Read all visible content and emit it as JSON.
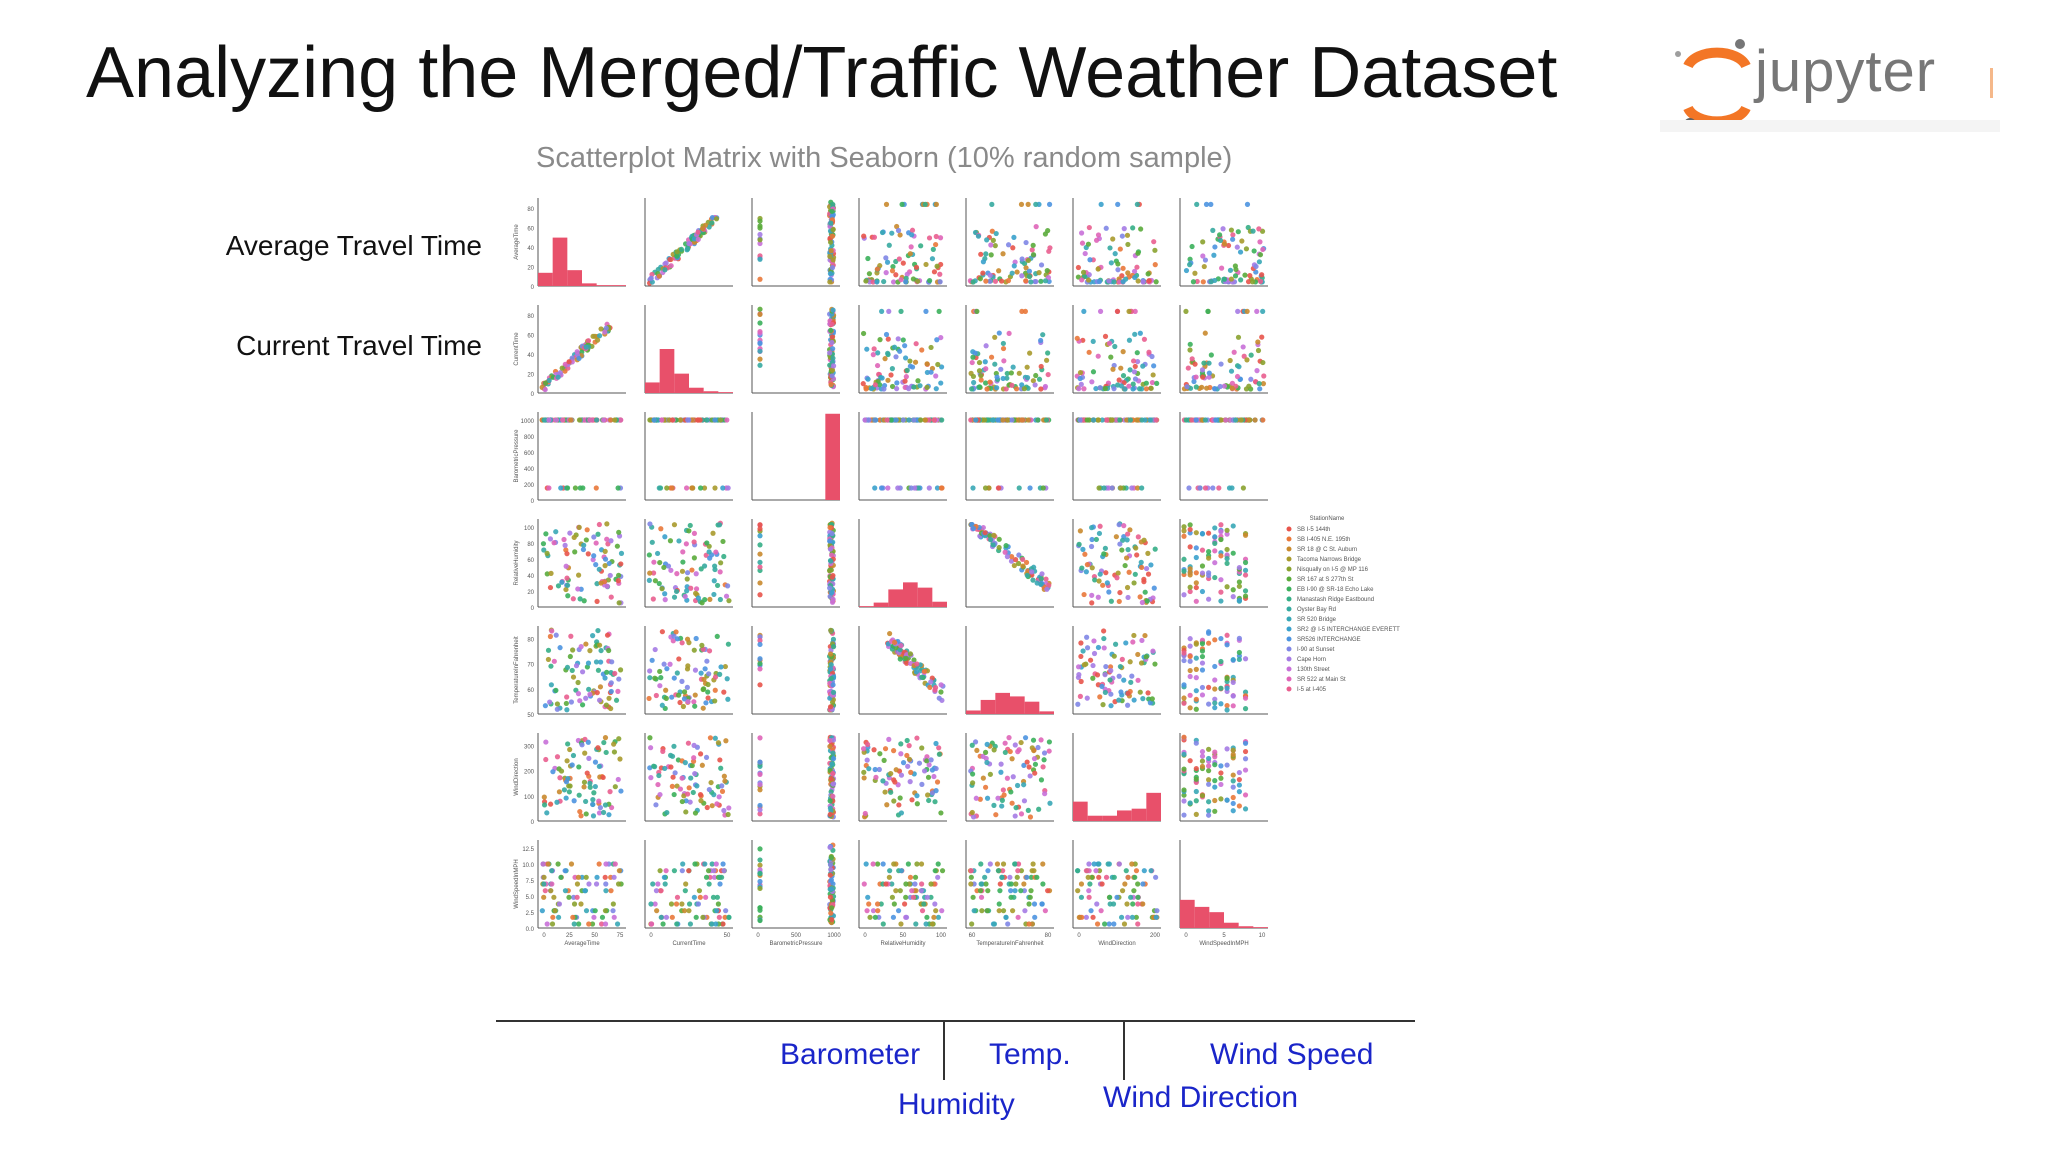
{
  "slide": {
    "title": "Analyzing the Merged/Traffic Weather Dataset",
    "logo_text": "jupyter"
  },
  "chart_data": {
    "type": "scatter",
    "title": "Scatterplot Matrix with Seaborn (10% random sample)",
    "variables": [
      {
        "name": "AverageTime",
        "ticks": [
          "0",
          "20",
          "40",
          "60",
          "80"
        ],
        "xticks": [
          "0",
          "25",
          "50",
          "75"
        ]
      },
      {
        "name": "CurrentTime",
        "ticks": [
          "0",
          "20",
          "40",
          "60",
          "80"
        ],
        "xticks": [
          "0",
          "50"
        ]
      },
      {
        "name": "BarometricPressure",
        "ticks": [
          "0",
          "200",
          "400",
          "600",
          "800",
          "1000"
        ],
        "xticks": [
          "0",
          "500",
          "1000"
        ]
      },
      {
        "name": "RelativeHumidity",
        "ticks": [
          "0",
          "20",
          "40",
          "60",
          "80",
          "100"
        ],
        "xticks": [
          "0",
          "50",
          "100"
        ]
      },
      {
        "name": "TemperatureInFahrenheit",
        "ticks": [
          "50",
          "60",
          "70",
          "80"
        ],
        "xticks": [
          "60",
          "80"
        ]
      },
      {
        "name": "WindDirection",
        "ticks": [
          "0",
          "100",
          "200",
          "300"
        ],
        "xticks": [
          "0",
          "200"
        ]
      },
      {
        "name": "WindSpeedInMPH",
        "ticks": [
          "0.0",
          "2.5",
          "5.0",
          "7.5",
          "10.0",
          "12.5"
        ],
        "xticks": [
          "0",
          "5",
          "10"
        ]
      }
    ],
    "legend": {
      "title": "StationName",
      "placement": "right",
      "entries": [
        {
          "name": "SB I-5 144th",
          "color": "#e8544b"
        },
        {
          "name": "SB I-405 N.E. 195th",
          "color": "#e9783a"
        },
        {
          "name": "SR 18 @ C St. Auburn",
          "color": "#c98a2e"
        },
        {
          "name": "Tacoma Narrows Bridge",
          "color": "#a89a2c"
        },
        {
          "name": "Nisqually on I-5 @ MP 116",
          "color": "#8aa22f"
        },
        {
          "name": "SR 167 at S 277th St",
          "color": "#5aab3b"
        },
        {
          "name": "EB I-90 @ SR-18 Echo Lake",
          "color": "#3bb05b"
        },
        {
          "name": "Manastash Ridge Eastbound",
          "color": "#35ae86"
        },
        {
          "name": "Oyster Bay Rd",
          "color": "#36aaa0"
        },
        {
          "name": "SR 520 Bridge",
          "color": "#38a7b6"
        },
        {
          "name": "SR2 @ I-5 INTERCHANGE EVERETT",
          "color": "#3aa1cc"
        },
        {
          "name": "SR526 INTERCHANGE",
          "color": "#4c94e0"
        },
        {
          "name": "I-90 at Sunset",
          "color": "#7f86e6"
        },
        {
          "name": "Cape Horn",
          "color": "#a57be4"
        },
        {
          "name": "130th Street",
          "color": "#c870d8"
        },
        {
          "name": "SR 522 at Main St",
          "color": "#df65b8"
        },
        {
          "name": "I-5 at I-405",
          "color": "#e95e8f"
        }
      ]
    }
  },
  "annotations": {
    "row_labels": [
      "Average Travel Time",
      "Current Travel Time"
    ],
    "col_labels": [
      "Barometer",
      "Temp.",
      "Wind Speed",
      "Humidity",
      "Wind Direction"
    ]
  },
  "colors": {
    "annotation_text": "#1a25c9",
    "histogram": "#e8506a"
  }
}
